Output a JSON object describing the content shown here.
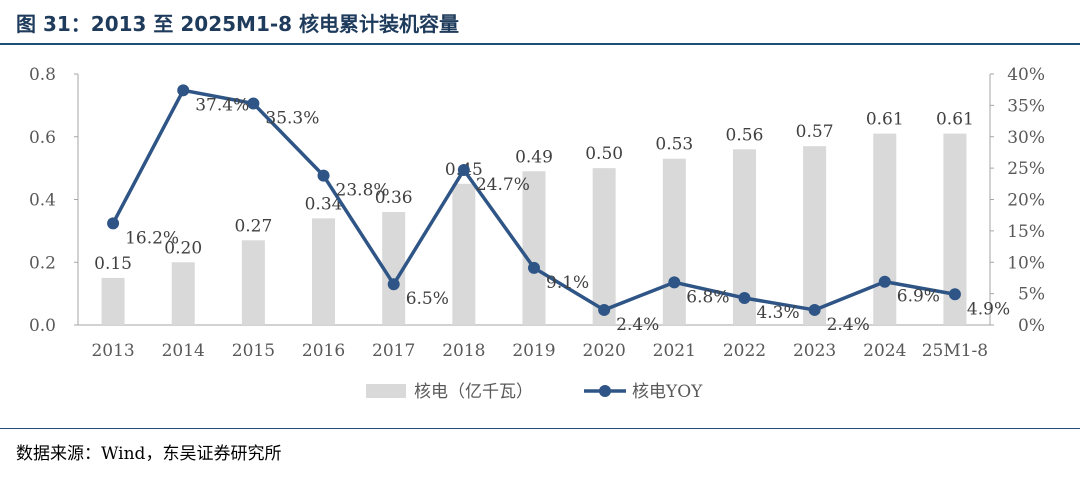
{
  "figure": {
    "title": "图 31：2013 至 2025M1-8 核电累计装机容量",
    "source": "数据来源：Wind，东吴证券研究所"
  },
  "colors": {
    "bar": "#d9d9d9",
    "line": "#2e5586",
    "title": "#1f3b5c",
    "rule": "#1f4e79",
    "axis_text": "#595959"
  },
  "chart_data": {
    "type": "bar+line",
    "categories": [
      "2013",
      "2014",
      "2015",
      "2016",
      "2017",
      "2018",
      "2019",
      "2020",
      "2021",
      "2022",
      "2023",
      "2024",
      "25M1-8"
    ],
    "series": [
      {
        "name": "核电（亿千瓦）",
        "type": "bar",
        "axis": "left",
        "values": [
          0.15,
          0.2,
          0.27,
          0.34,
          0.36,
          0.45,
          0.49,
          0.5,
          0.53,
          0.56,
          0.57,
          0.61,
          0.61
        ],
        "labels": [
          "0.15",
          "0.20",
          "0.27",
          "0.34",
          "0.36",
          "0.45",
          "0.49",
          "0.50",
          "0.53",
          "0.56",
          "0.57",
          "0.61",
          "0.61"
        ]
      },
      {
        "name": "核电YOY",
        "type": "line",
        "axis": "right",
        "values": [
          16.2,
          37.4,
          35.3,
          23.8,
          6.5,
          24.7,
          9.1,
          2.4,
          6.8,
          4.3,
          2.4,
          6.9,
          4.9
        ],
        "labels": [
          "16.2%",
          "37.4%",
          "35.3%",
          "23.8%",
          "6.5%",
          "24.7%",
          "9.1%",
          "2.4%",
          "6.8%",
          "4.3%",
          "2.4%",
          "6.9%",
          "4.9%"
        ]
      }
    ],
    "y_left": {
      "min": 0,
      "max": 0.8,
      "ticks": [
        "0.0",
        "0.2",
        "0.4",
        "0.6",
        "0.8"
      ]
    },
    "y_right": {
      "min": 0,
      "max": 40,
      "ticks": [
        "0%",
        "5%",
        "10%",
        "15%",
        "20%",
        "25%",
        "30%",
        "35%",
        "40%"
      ]
    },
    "legend": {
      "position": "bottom-center",
      "entries": [
        "核电（亿千瓦）",
        "核电YOY"
      ]
    },
    "grid": false
  }
}
